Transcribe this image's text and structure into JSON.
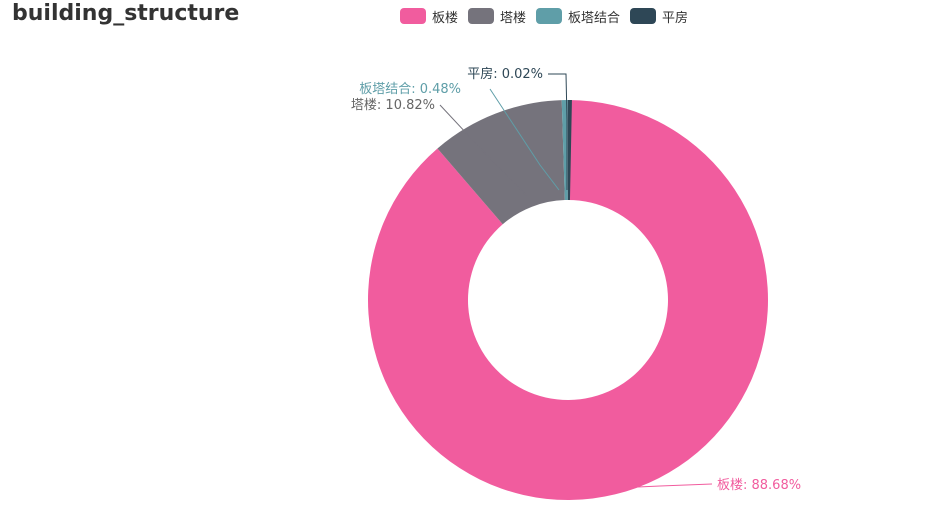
{
  "title": "building_structure",
  "chart_data": {
    "type": "pie",
    "title": "building_structure",
    "series": [
      {
        "name": "板楼",
        "value": 88.68,
        "label": "板楼: 88.68%",
        "color": "#f15c9e"
      },
      {
        "name": "塔楼",
        "value": 10.82,
        "label": "塔楼: 10.82%",
        "color": "#75737c"
      },
      {
        "name": "板塔结合",
        "value": 0.48,
        "label": "板塔结合: 0.48%",
        "color": "#5f9ea8"
      },
      {
        "name": "平房",
        "value": 0.02,
        "label": "平房: 0.02%",
        "color": "#2e4756"
      }
    ],
    "label_colors": [
      "#f15c9e",
      "#666666",
      "#5f9ea8",
      "#2e4756"
    ]
  }
}
